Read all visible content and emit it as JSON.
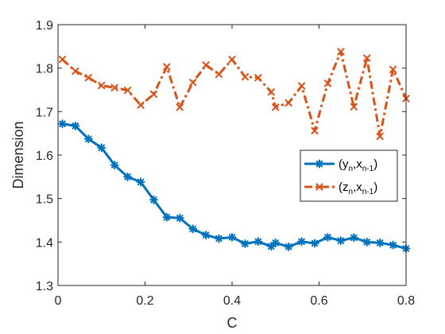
{
  "chart_data": {
    "type": "line",
    "title": "",
    "xlabel": "C",
    "ylabel": "Dimension",
    "xlim": [
      0,
      0.8
    ],
    "ylim": [
      1.3,
      1.9
    ],
    "xticks": [
      0,
      0.2,
      0.4,
      0.6,
      0.8
    ],
    "xtick_labels": [
      "0",
      "0.2",
      "0.4",
      "0.6",
      "0.8"
    ],
    "yticks": [
      1.3,
      1.4,
      1.5,
      1.6,
      1.7,
      1.8,
      1.9
    ],
    "ytick_labels": [
      "1.3",
      "1.4",
      "1.5",
      "1.6",
      "1.7",
      "1.8",
      "1.9"
    ],
    "grid": false,
    "legend_position": "right",
    "x": [
      0.01,
      0.04,
      0.07,
      0.1,
      0.13,
      0.16,
      0.19,
      0.22,
      0.25,
      0.28,
      0.31,
      0.34,
      0.37,
      0.4,
      0.43,
      0.46,
      0.49,
      0.5,
      0.53,
      0.56,
      0.59,
      0.62,
      0.65,
      0.68,
      0.71,
      0.74,
      0.77,
      0.8
    ],
    "series": [
      {
        "legend_base": "(y",
        "legend_sub1": "n",
        "legend_mid": ",x",
        "legend_sub2": "n-1",
        "legend_end": ")",
        "color": "#0072BD",
        "style": "solid",
        "marker": "asterisk",
        "values": [
          1.672,
          1.667,
          1.637,
          1.617,
          1.577,
          1.55,
          1.538,
          1.497,
          1.457,
          1.455,
          1.43,
          1.416,
          1.408,
          1.411,
          1.396,
          1.401,
          1.39,
          1.398,
          1.389,
          1.401,
          1.397,
          1.411,
          1.403,
          1.41,
          1.4,
          1.398,
          1.393,
          1.385
        ]
      },
      {
        "legend_base": "(z",
        "legend_sub1": "n",
        "legend_mid": ",x",
        "legend_sub2": "n-1",
        "legend_end": ")",
        "color": "#D95319",
        "style": "dashdot",
        "marker": "x",
        "values": [
          1.82,
          1.793,
          1.778,
          1.76,
          1.755,
          1.749,
          1.715,
          1.74,
          1.803,
          1.71,
          1.767,
          1.807,
          1.786,
          1.82,
          1.78,
          1.778,
          1.745,
          1.71,
          1.72,
          1.759,
          1.656,
          1.765,
          1.838,
          1.711,
          1.823,
          1.643,
          1.797,
          1.73
        ]
      }
    ]
  }
}
